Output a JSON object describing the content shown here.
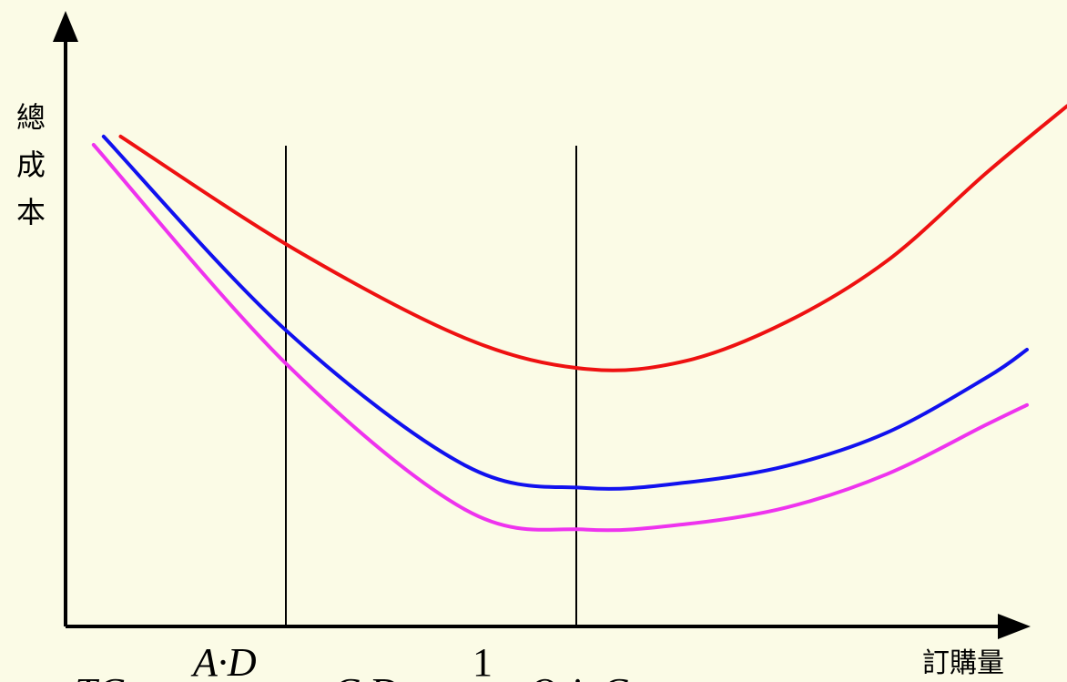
{
  "chart_data": {
    "type": "line",
    "title": "",
    "xlabel": "訂購量",
    "ylabel": "總成本",
    "grid": false,
    "legend": "none",
    "x_range": [
      0,
      100
    ],
    "y_range": [
      0,
      100
    ],
    "series": [
      {
        "color": "#ee1111",
        "points": [
          [
            5.5,
            88.5
          ],
          [
            23,
            68
          ],
          [
            40,
            52
          ],
          [
            52,
            46.5
          ],
          [
            62,
            48
          ],
          [
            72,
            55
          ],
          [
            82,
            66
          ],
          [
            92,
            82
          ],
          [
            100,
            94
          ]
        ]
      },
      {
        "color": "#1111ee",
        "points": [
          [
            3.8,
            88.5
          ],
          [
            22,
            53.5
          ],
          [
            40,
            29
          ],
          [
            52,
            25
          ],
          [
            62,
            26
          ],
          [
            72,
            29
          ],
          [
            82,
            35
          ],
          [
            92,
            45
          ],
          [
            96,
            50
          ]
        ]
      },
      {
        "color": "#ee33ee",
        "points": [
          [
            2.8,
            87
          ],
          [
            22,
            47.5
          ],
          [
            40,
            21
          ],
          [
            52,
            17.5
          ],
          [
            62,
            18.5
          ],
          [
            72,
            21.5
          ],
          [
            82,
            27.5
          ],
          [
            92,
            36.5
          ],
          [
            96,
            40
          ]
        ]
      }
    ],
    "vertical_lines": [
      {
        "x": 22
      },
      {
        "x": 51
      }
    ],
    "formula": {
      "tc": "TC",
      "eq1": "=",
      "numerator": "A·D",
      "plus1": "+",
      "cd": "C·D",
      "plus2": "+",
      "half": "1",
      "q": "Q",
      "i": "i",
      "c": "C"
    }
  }
}
